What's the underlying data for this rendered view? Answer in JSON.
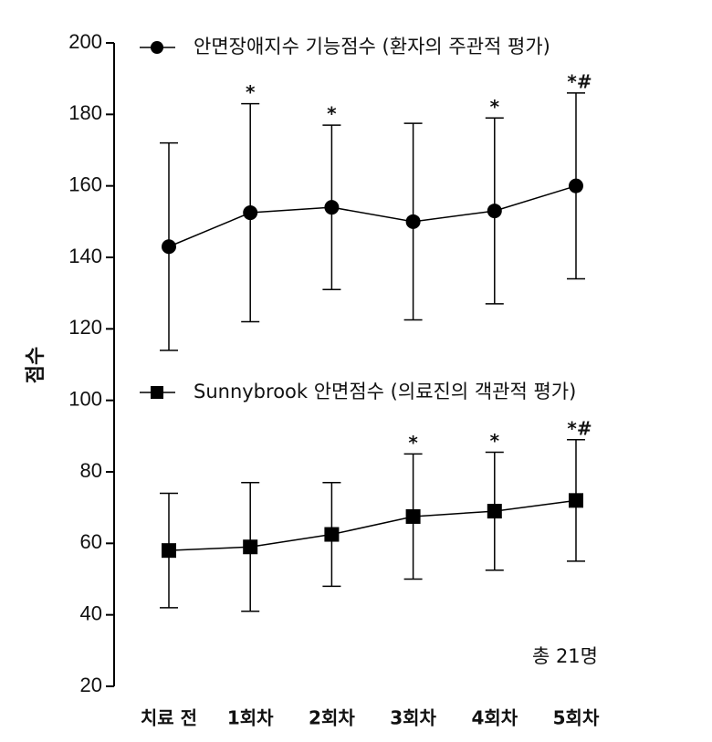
{
  "chart_data": {
    "type": "line",
    "y_label": "점수",
    "note": "총 21명",
    "categories": [
      "치료 전",
      "1회차",
      "2회차",
      "3회차",
      "4회차",
      "5회차"
    ],
    "ylim": [
      20,
      200
    ],
    "yticks": [
      20,
      40,
      60,
      80,
      100,
      120,
      140,
      160,
      180,
      200
    ],
    "series": [
      {
        "name": "안면장애지수 기능점수 (환자의 주관적 평가)",
        "color": "#000000",
        "marker": "circle",
        "values": [
          143,
          152.5,
          154,
          150,
          153,
          160
        ],
        "errors": [
          29,
          30.5,
          23,
          27.5,
          26,
          26
        ],
        "annotations": [
          null,
          "*",
          "*",
          null,
          "*",
          "*#"
        ]
      },
      {
        "name": "Sunnybrook 안면점수 (의료진의 객관적 평가)",
        "color": "#000000",
        "marker": "square",
        "values": [
          58,
          59,
          62.5,
          67.5,
          69,
          72
        ],
        "errors": [
          16,
          18,
          14.5,
          17.5,
          16.5,
          17
        ],
        "annotations": [
          null,
          null,
          null,
          "*",
          "*",
          "*#"
        ]
      }
    ]
  }
}
